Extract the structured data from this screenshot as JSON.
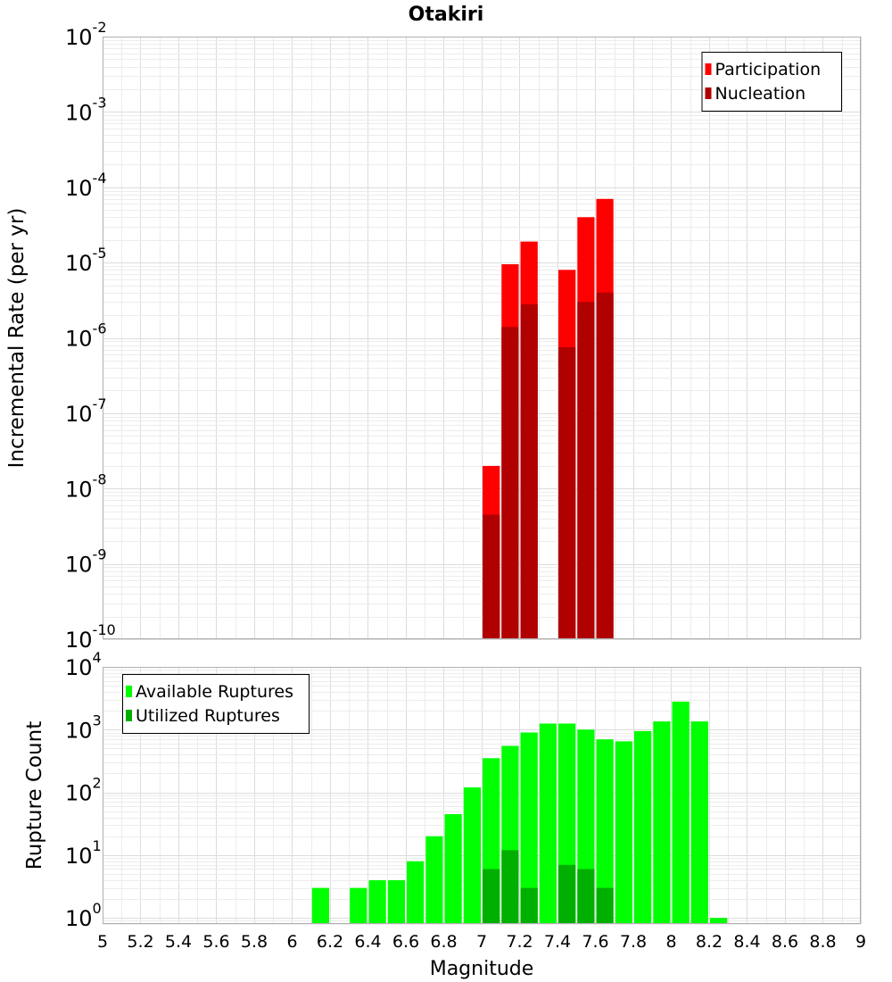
{
  "chart_data": [
    {
      "type": "bar",
      "title": "Otakiri",
      "ylabel": "Incremental Rate (per yr)",
      "xlabel": "",
      "xlim": [
        5,
        9
      ],
      "ylim": [
        1e-10,
        0.01
      ],
      "yscale": "log",
      "ytick_bases": [
        "10",
        "10",
        "10",
        "10",
        "10",
        "10",
        "10",
        "10",
        "10"
      ],
      "ytick_exponents": [
        "-10",
        "-9",
        "-8",
        "-7",
        "-6",
        "-5",
        "-4",
        "-3",
        "-2"
      ],
      "grid": true,
      "legend_position": "top-right",
      "bar_width": 0.1,
      "series": [
        {
          "name": "Participation",
          "color": "#ff0000",
          "x": [
            7.05,
            7.15,
            7.25,
            7.45,
            7.55,
            7.65
          ],
          "values": [
            2e-08,
            9.5e-06,
            1.9e-05,
            8e-06,
            4e-05,
            7e-05
          ]
        },
        {
          "name": "Nucleation",
          "color": "#b00000",
          "x": [
            7.05,
            7.15,
            7.25,
            7.45,
            7.55,
            7.65
          ],
          "values": [
            4.5e-09,
            1.4e-06,
            2.8e-06,
            7.5e-07,
            3e-06,
            4e-06
          ]
        }
      ]
    },
    {
      "type": "bar",
      "title": "",
      "ylabel": "Rupture Count",
      "xlabel": "Magnitude",
      "xlim": [
        5,
        9
      ],
      "ylim": [
        0.8,
        10000
      ],
      "yscale": "log",
      "ytick_bases": [
        "10",
        "10",
        "10",
        "10",
        "10"
      ],
      "ytick_exponents": [
        "0",
        "1",
        "2",
        "3",
        "4"
      ],
      "xticks": [
        "5",
        "5.2",
        "5.4",
        "5.6",
        "5.8",
        "6",
        "6.2",
        "6.4",
        "6.6",
        "6.8",
        "7",
        "7.2",
        "7.4",
        "7.6",
        "7.8",
        "8",
        "8.2",
        "8.4",
        "8.6",
        "8.8",
        "9"
      ],
      "grid": true,
      "legend_position": "top-left",
      "bar_width": 0.1,
      "series": [
        {
          "name": "Available Ruptures",
          "color": "#00ff00",
          "x": [
            6.15,
            6.35,
            6.45,
            6.55,
            6.65,
            6.75,
            6.85,
            6.95,
            7.05,
            7.15,
            7.25,
            7.35,
            7.45,
            7.55,
            7.65,
            7.75,
            7.85,
            7.95,
            8.05,
            8.15,
            8.25
          ],
          "values": [
            3,
            3,
            4,
            4,
            8,
            20,
            45,
            120,
            350,
            550,
            900,
            1250,
            1250,
            1000,
            700,
            650,
            950,
            1350,
            2800,
            1350,
            1
          ]
        },
        {
          "name": "Utilized Ruptures",
          "color": "#00b000",
          "x": [
            7.05,
            7.15,
            7.25,
            7.45,
            7.55,
            7.65
          ],
          "values": [
            6,
            12,
            3,
            7,
            6,
            3
          ]
        }
      ]
    }
  ]
}
